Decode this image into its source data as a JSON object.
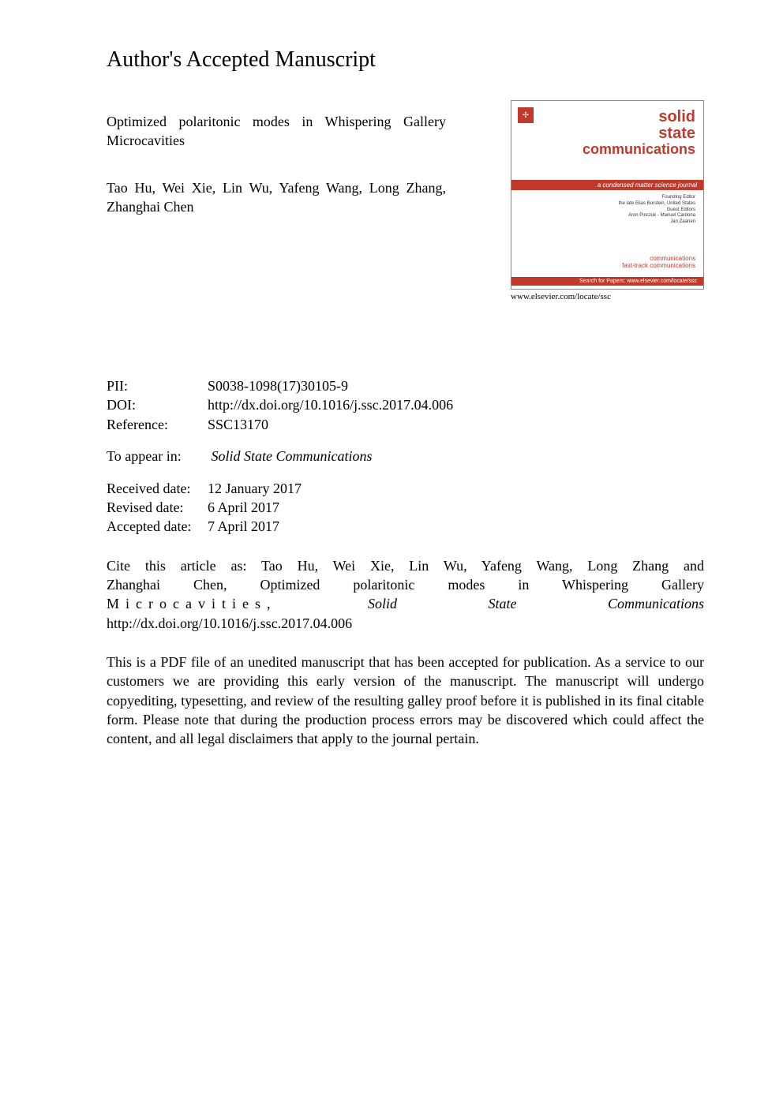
{
  "section_title": "Author's Accepted Manuscript",
  "article": {
    "title": "Optimized polaritonic modes in Whispering Gallery Microcavities",
    "authors": "Tao Hu, Wei Xie, Lin Wu, Yafeng Wang, Long Zhang, Zhanghai Chen"
  },
  "cover": {
    "solid": "solid",
    "state": "state",
    "comm": "communications",
    "banner": "a condensed matter science journal",
    "mid_line1": "Founding Editor",
    "mid_line2": "the late Elias Burstein, United States",
    "mid_line3": "Guest Editors",
    "mid_line4": "Aron Pinczuk - Manuel Cardona",
    "mid_line5": "Jan Zaanen",
    "bottom1": "communications",
    "bottom2": "fast-track communications",
    "footer": "Search for Papers: www.elsevier.com/locate/ssc",
    "url": "www.elsevier.com/locate/ssc"
  },
  "meta": {
    "pii_label": "PII:",
    "pii_value": "S0038-1098(17)30105-9",
    "doi_label": "DOI:",
    "doi_value": "http://dx.doi.org/10.1016/j.ssc.2017.04.006",
    "ref_label": "Reference:",
    "ref_value": "SSC13170"
  },
  "appear": {
    "label": "To appear in:",
    "journal": "Solid State Communications"
  },
  "dates": {
    "received_label": "Received date:",
    "received_value": "12 January 2017",
    "revised_label": "Revised date:",
    "revised_value": "6 April 2017",
    "accepted_label": "Accepted date:",
    "accepted_value": "7 April 2017"
  },
  "citation": {
    "line1": "Cite this article as: Tao Hu, Wei Xie, Lin Wu, Yafeng Wang, Long Zhang and",
    "line2a": "Zhanghai Chen, Optimized polaritonic modes in Whispering Gallery",
    "line3a": "Microcavities,",
    "line3b": "Solid",
    "line3c": "State",
    "line3d": "Communications",
    "line4": "http://dx.doi.org/10.1016/j.ssc.2017.04.006"
  },
  "disclaimer": "This is a PDF file of an unedited manuscript that has been accepted for publication. As a service to our customers we are providing this early version of the manuscript. The manuscript will undergo copyediting, typesetting, and review of the resulting galley proof before it is published in its final citable form. Please note that during the production process errors may be discovered which could affect the content, and all legal disclaimers that apply to the journal pertain.",
  "colors": {
    "brand_red": "#c0392b",
    "text": "#000000",
    "background": "#ffffff"
  }
}
